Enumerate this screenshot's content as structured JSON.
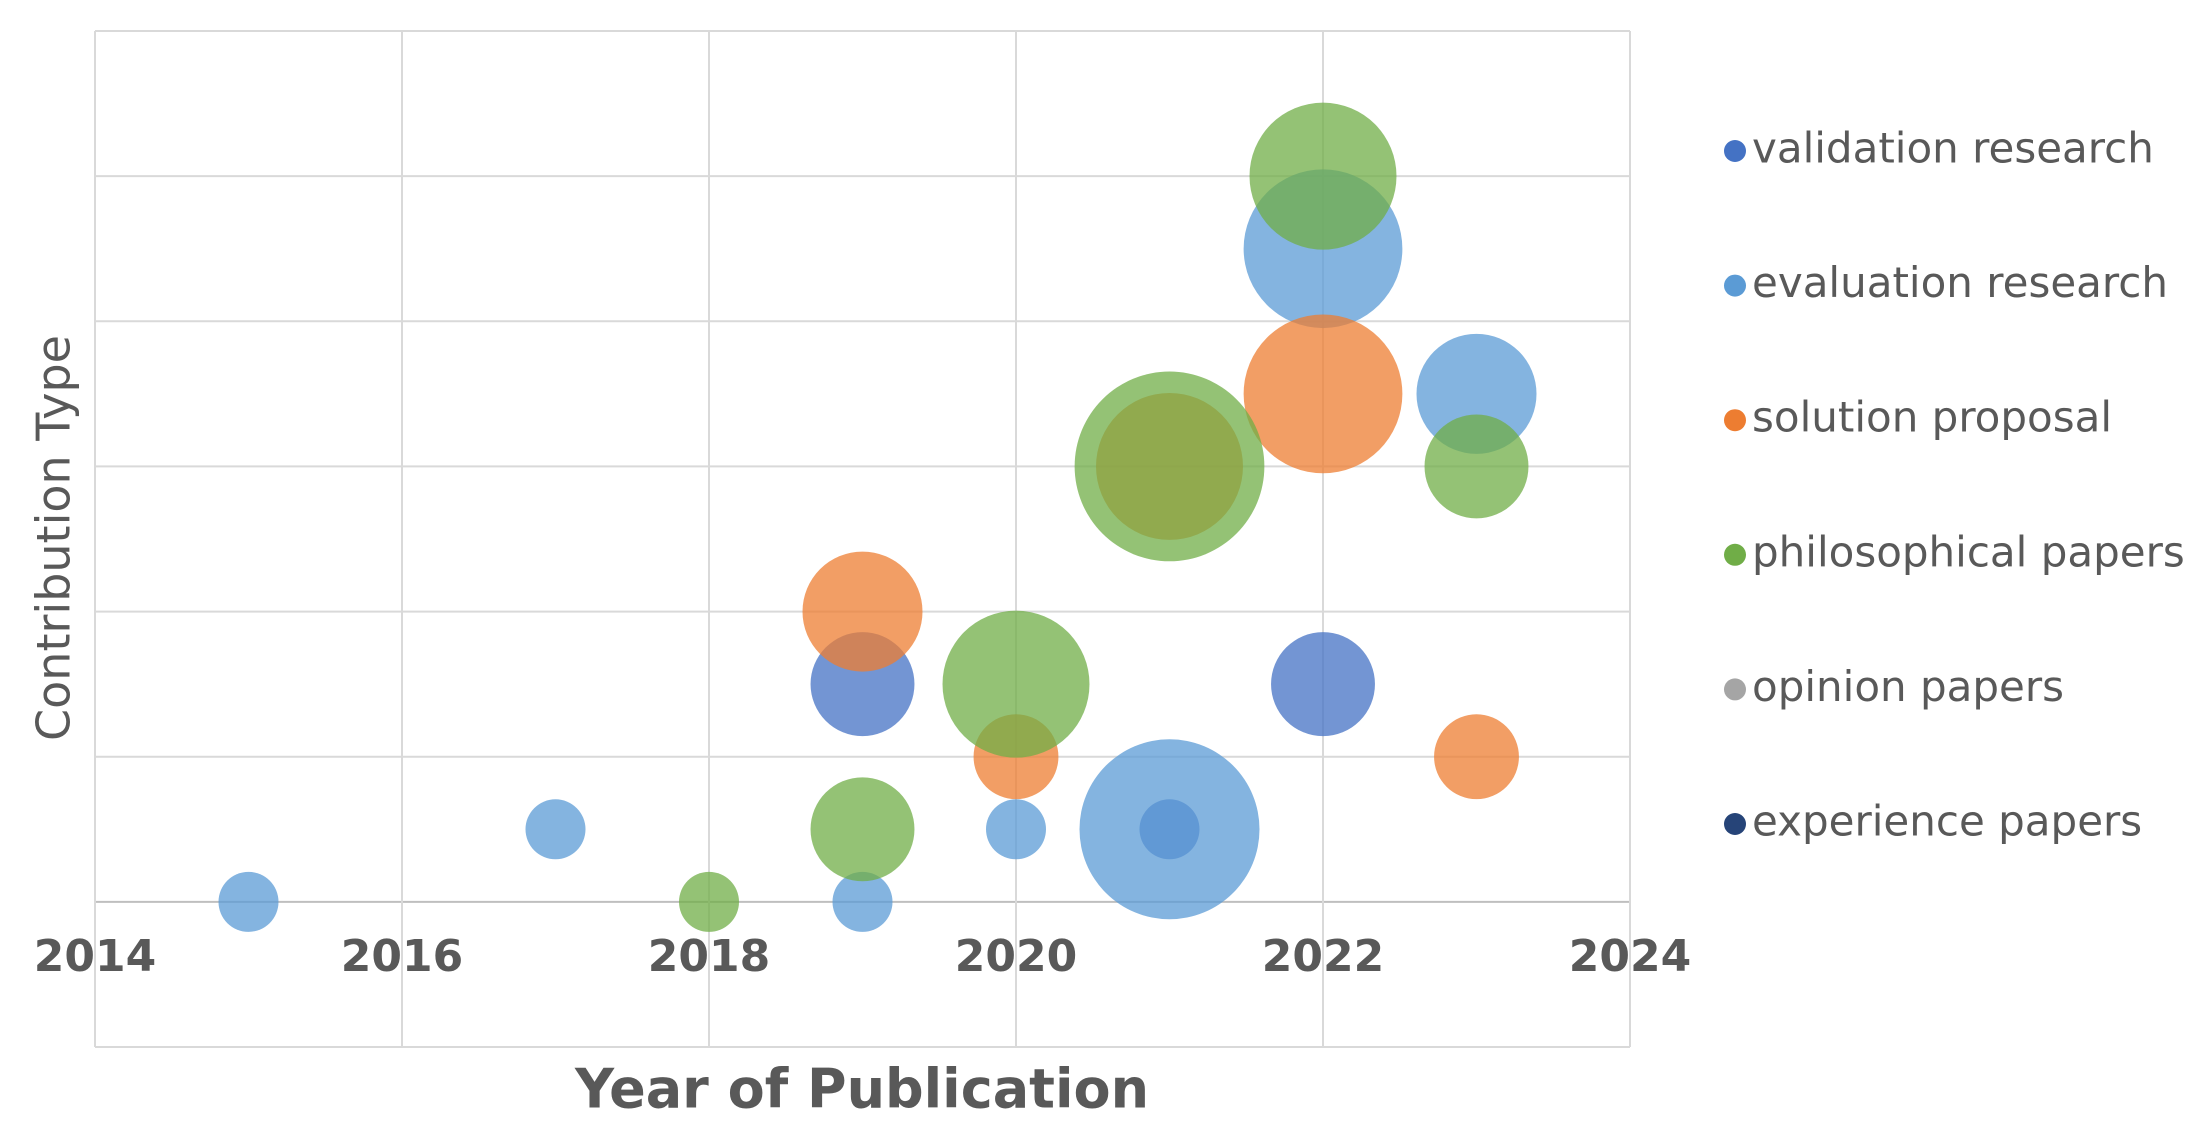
{
  "chart_data": {
    "type": "bubble",
    "xlabel": "Year of Publication",
    "ylabel": "Contribution Type",
    "xlim": [
      2014,
      2024
    ],
    "xticks": [
      2014,
      2016,
      2018,
      2020,
      2022,
      2024
    ],
    "ylim": [
      -1,
      6
    ],
    "yticks": [
      -1,
      0,
      1,
      2,
      3,
      4,
      5,
      6
    ],
    "y_tick_labels_visible": false,
    "grid": true,
    "legend": "right",
    "opacity": 0.75,
    "series": [
      {
        "name": "validation research",
        "color": "#4472c4",
        "x": [
          2019,
          2021,
          2022
        ],
        "values": [
          1.5,
          0.5,
          1.5
        ],
        "sizes": [
          3,
          1,
          3
        ]
      },
      {
        "name": "evaluation research",
        "color": "#5b9bd5",
        "x": [
          2015,
          2017,
          2019,
          2020,
          2021,
          2022,
          2023
        ],
        "values": [
          0,
          0.5,
          0,
          0.5,
          0.5,
          4.5,
          3.5
        ],
        "sizes": [
          1,
          1,
          1,
          1,
          9,
          7,
          4
        ]
      },
      {
        "name": "solution proposal",
        "color": "#ed7d31",
        "x": [
          2019,
          2020,
          2021,
          2022,
          2023
        ],
        "values": [
          2,
          1,
          3,
          3.5,
          1
        ],
        "sizes": [
          4,
          2,
          6,
          7,
          2
        ]
      },
      {
        "name": "philosophical papers",
        "color": "#70ad47",
        "x": [
          2018,
          2019,
          2020,
          2021,
          2022,
          2023
        ],
        "values": [
          0,
          0.5,
          1.5,
          3,
          5,
          3
        ],
        "sizes": [
          1,
          3,
          6,
          10,
          6,
          3
        ]
      },
      {
        "name": "opinion papers",
        "color": "#a5a5a5",
        "x": [],
        "values": [],
        "sizes": []
      },
      {
        "name": "experience papers",
        "color": "#264478",
        "x": [],
        "values": [],
        "sizes": []
      }
    ]
  }
}
